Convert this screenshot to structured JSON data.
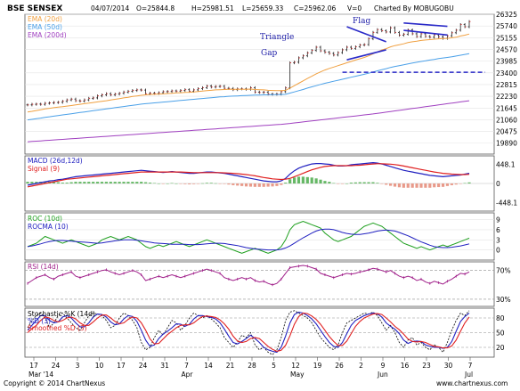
{
  "header": {
    "symbol": "BSE SENSEX",
    "date": "04/07/2014",
    "open": "O=25844.8",
    "high": "H=25981.51",
    "low": "L=25659.33",
    "close": "C=25962.06",
    "volume": "V=0",
    "charted_by": "Charted By MOBUGOBU"
  },
  "footer": {
    "copyright": "Copyright © 2014 ChartNexus",
    "url": "www.chartnexus.com"
  },
  "chart_data": [
    {
      "type": "line",
      "panel": "price",
      "legend": [
        "EMA (20d)",
        "EMA (50d)",
        "EMA (200d)"
      ],
      "legend_colors": [
        "#f0a040",
        "#4aa0e8",
        "#a040c0"
      ],
      "annotations": [
        "Flag",
        "Triangle",
        "Gap"
      ],
      "ylim": [
        19345,
        26325
      ],
      "yticks": [
        26325,
        25740,
        25155,
        24570,
        23985,
        23400,
        22815,
        22230,
        21645,
        21060,
        20475,
        19890
      ],
      "x_tick_labels": [
        "17",
        "24",
        "3",
        "10",
        "17",
        "24",
        "31",
        "7",
        "14",
        "21",
        "28",
        "5",
        "12",
        "19",
        "26",
        "2",
        "9",
        "16",
        "23",
        "30",
        "7"
      ],
      "month_labels": [
        "Mar '14",
        "Apr",
        "May",
        "Jun",
        "Jul"
      ],
      "ohlc_close": [
        21800,
        21830,
        21840,
        21830,
        21880,
        21900,
        21920,
        21930,
        21980,
        22050,
        22090,
        22010,
        21990,
        22050,
        22130,
        22150,
        22250,
        22300,
        22360,
        22300,
        22340,
        22380,
        22440,
        22480,
        22520,
        22550,
        22540,
        22360,
        22380,
        22370,
        22410,
        22460,
        22470,
        22500,
        22490,
        22520,
        22560,
        22480,
        22550,
        22610,
        22660,
        22740,
        22690,
        22720,
        22730,
        22630,
        22620,
        22560,
        22600,
        22600,
        22580,
        22660,
        22440,
        22420,
        22430,
        22340,
        22330,
        22340,
        22460,
        22650,
        23900,
        23930,
        24150,
        24250,
        24400,
        24520,
        24680,
        24500,
        24430,
        24370,
        24290,
        24410,
        24550,
        24680,
        24620,
        24700,
        24790,
        24810,
        25100,
        25420,
        25560,
        25500,
        25440,
        25650,
        25420,
        25280,
        25330,
        25540,
        25350,
        25210,
        25350,
        25220,
        25180,
        25300,
        25200,
        25120,
        25250,
        25400,
        25530,
        25810,
        25700,
        25960
      ],
      "ema20": [
        21450,
        21480,
        21520,
        21560,
        21600,
        21630,
        21660,
        21690,
        21710,
        21740,
        21770,
        21800,
        21830,
        21860,
        21890,
        21920,
        21950,
        21980,
        22010,
        22050,
        22080,
        22110,
        22150,
        22180,
        22220,
        22250,
        22280,
        22300,
        22320,
        22330,
        22340,
        22350,
        22370,
        22380,
        22400,
        22410,
        22420,
        22430,
        22450,
        22470,
        22490,
        22510,
        22530,
        22550,
        22560,
        22570,
        22580,
        22580,
        22580,
        22580,
        22580,
        22590,
        22570,
        22560,
        22550,
        22530,
        22520,
        22510,
        22510,
        22530,
        22640,
        22760,
        22880,
        23000,
        23120,
        23230,
        23350,
        23450,
        23540,
        23620,
        23690,
        23760,
        23830,
        23900,
        23970,
        24040,
        24100,
        24170,
        24250,
        24350,
        24450,
        24540,
        24610,
        24700,
        24760,
        24800,
        24850,
        24910,
        24950,
        24980,
        25020,
        25040,
        25060,
        25080,
        25100,
        25110,
        25120,
        25150,
        25180,
        25240,
        25280,
        25340
      ],
      "ema50": [
        21050,
        21080,
        21110,
        21140,
        21180,
        21210,
        21240,
        21270,
        21300,
        21330,
        21360,
        21390,
        21420,
        21450,
        21480,
        21510,
        21540,
        21570,
        21600,
        21630,
        21660,
        21690,
        21720,
        21750,
        21780,
        21810,
        21840,
        21860,
        21880,
        21900,
        21920,
        21940,
        21960,
        21980,
        22000,
        22020,
        22040,
        22060,
        22080,
        22100,
        22120,
        22140,
        22160,
        22180,
        22200,
        22210,
        22230,
        22240,
        22250,
        22260,
        22270,
        22280,
        22290,
        22290,
        22300,
        22300,
        22310,
        22310,
        22320,
        22330,
        22390,
        22450,
        22510,
        22570,
        22640,
        22700,
        22760,
        22820,
        22880,
        22930,
        22980,
        23030,
        23080,
        23130,
        23180,
        23230,
        23280,
        23330,
        23380,
        23440,
        23500,
        23560,
        23610,
        23670,
        23720,
        23760,
        23800,
        23850,
        23890,
        23930,
        23970,
        24000,
        24040,
        24070,
        24110,
        24140,
        24170,
        24200,
        24240,
        24280,
        24320,
        24360
      ],
      "ema200": [
        19960,
        19975,
        19990,
        20005,
        20020,
        20035,
        20050,
        20065,
        20080,
        20095,
        20110,
        20125,
        20140,
        20155,
        20170,
        20185,
        20200,
        20215,
        20230,
        20245,
        20260,
        20275,
        20290,
        20305,
        20320,
        20335,
        20350,
        20365,
        20380,
        20395,
        20410,
        20425,
        20440,
        20455,
        20470,
        20485,
        20500,
        20515,
        20530,
        20545,
        20560,
        20575,
        20590,
        20605,
        20620,
        20635,
        20650,
        20665,
        20680,
        20695,
        20710,
        20725,
        20740,
        20755,
        20770,
        20785,
        20800,
        20815,
        20830,
        20850,
        20875,
        20900,
        20925,
        20950,
        20975,
        21000,
        21025,
        21050,
        21075,
        21100,
        21125,
        21150,
        21175,
        21200,
        21225,
        21250,
        21275,
        21300,
        21325,
        21350,
        21380,
        21410,
        21440,
        21470,
        21500,
        21530,
        21560,
        21590,
        21620,
        21650,
        21680,
        21710,
        21740,
        21770,
        21800,
        21830,
        21860,
        21890,
        21920,
        21950,
        21980,
        22010
      ]
    },
    {
      "type": "line",
      "panel": "macd",
      "legend": [
        "MACD (26d,12d)",
        "Signal (9)"
      ],
      "legend_colors": [
        "#2020c0",
        "#e02020"
      ],
      "ylim": [
        -650,
        650
      ],
      "yticks": [
        "448.1",
        "0",
        "-448.1"
      ],
      "macd": [
        -40,
        -20,
        0,
        20,
        40,
        60,
        70,
        90,
        100,
        120,
        140,
        160,
        170,
        180,
        190,
        200,
        210,
        220,
        230,
        240,
        250,
        260,
        270,
        280,
        290,
        300,
        310,
        300,
        290,
        280,
        270,
        260,
        270,
        280,
        270,
        260,
        250,
        240,
        240,
        250,
        260,
        270,
        270,
        260,
        250,
        240,
        220,
        200,
        180,
        160,
        140,
        120,
        100,
        80,
        60,
        50,
        40,
        40,
        60,
        120,
        220,
        300,
        360,
        400,
        430,
        460,
        470,
        470,
        460,
        450,
        430,
        410,
        410,
        420,
        440,
        450,
        460,
        470,
        480,
        490,
        480,
        460,
        430,
        400,
        370,
        340,
        310,
        290,
        270,
        250,
        230,
        210,
        190,
        180,
        170,
        160,
        170,
        180,
        190,
        200,
        220,
        240
      ],
      "signal": [
        -80,
        -60,
        -40,
        -20,
        0,
        20,
        40,
        60,
        80,
        100,
        110,
        120,
        130,
        140,
        150,
        160,
        170,
        180,
        190,
        200,
        210,
        220,
        230,
        240,
        250,
        260,
        270,
        270,
        270,
        270,
        270,
        270,
        270,
        270,
        270,
        270,
        265,
        260,
        255,
        255,
        255,
        255,
        255,
        255,
        255,
        250,
        245,
        240,
        230,
        220,
        210,
        195,
        180,
        160,
        140,
        125,
        110,
        100,
        95,
        100,
        120,
        160,
        200,
        240,
        280,
        320,
        350,
        380,
        400,
        410,
        420,
        420,
        420,
        420,
        420,
        425,
        430,
        440,
        450,
        460,
        465,
        465,
        460,
        455,
        445,
        430,
        410,
        390,
        370,
        350,
        330,
        310,
        290,
        270,
        255,
        240,
        230,
        220,
        215,
        210,
        210,
        215
      ]
    },
    {
      "type": "line",
      "panel": "roc",
      "legend": [
        "ROC (10d)",
        "ROCMA (10)"
      ],
      "legend_colors": [
        "#20a020",
        "#2020c0"
      ],
      "ylim": [
        -3,
        11
      ],
      "yticks": [
        "9",
        "6",
        "3",
        "0"
      ],
      "roc": [
        1,
        1.5,
        2,
        3,
        4,
        3.5,
        3,
        2.5,
        2,
        2.5,
        3,
        2.5,
        2,
        1.5,
        1,
        1.5,
        2,
        3,
        3.5,
        4,
        3.5,
        3,
        3.5,
        4,
        3.5,
        3,
        2,
        1,
        0.5,
        1,
        1.5,
        1,
        1.5,
        2,
        2.5,
        2,
        1.5,
        1,
        1.5,
        2,
        2.5,
        3,
        2.5,
        2,
        1.5,
        1,
        0.5,
        0,
        -0.5,
        -1,
        -0.5,
        0,
        0.5,
        0,
        -0.5,
        -1,
        -0.5,
        0,
        1,
        3,
        6,
        7.5,
        8,
        8.5,
        8,
        7.5,
        7,
        6.5,
        5,
        4,
        3,
        2.5,
        3,
        3.5,
        4,
        5,
        6,
        7,
        7.5,
        8,
        7.5,
        7,
        6,
        5,
        4,
        3,
        2,
        1.5,
        1,
        0.5,
        1,
        0.5,
        0,
        0.5,
        1,
        1.5,
        1,
        1.5,
        2,
        2.5,
        3,
        3.5
      ],
      "rocma": [
        1,
        1.2,
        1.5,
        1.8,
        2.2,
        2.5,
        2.7,
        2.8,
        2.8,
        2.7,
        2.6,
        2.5,
        2.4,
        2.3,
        2.2,
        2.1,
        2,
        2.1,
        2.3,
        2.5,
        2.7,
        2.9,
        3,
        3,
        3,
        2.9,
        2.7,
        2.5,
        2.3,
        2.1,
        2,
        1.9,
        1.8,
        1.7,
        1.7,
        1.7,
        1.7,
        1.6,
        1.6,
        1.6,
        1.7,
        1.8,
        1.9,
        2,
        2,
        1.9,
        1.7,
        1.5,
        1.3,
        1,
        0.7,
        0.5,
        0.3,
        0.2,
        0.1,
        0,
        0,
        0,
        0.2,
        0.6,
        1.2,
        2,
        2.8,
        3.6,
        4.3,
        5,
        5.6,
        6,
        6.2,
        6.2,
        6,
        5.6,
        5.2,
        4.9,
        4.7,
        4.6,
        4.6,
        4.8,
        5,
        5.3,
        5.6,
        5.8,
        5.9,
        5.8,
        5.6,
        5.2,
        4.7,
        4.2,
        3.6,
        3,
        2.4,
        1.9,
        1.4,
        1,
        0.8,
        0.7,
        0.7,
        0.8,
        1,
        1.2,
        1.5,
        1.8
      ]
    },
    {
      "type": "line",
      "panel": "rsi",
      "legend": [
        "RSI (14d)"
      ],
      "legend_colors": [
        "#a0208a"
      ],
      "ylim": [
        20,
        82
      ],
      "yticks": [
        "70%",
        "30%"
      ],
      "rsi": [
        52,
        56,
        60,
        62,
        64,
        60,
        58,
        62,
        64,
        66,
        68,
        62,
        60,
        62,
        64,
        66,
        68,
        70,
        71,
        68,
        66,
        64,
        66,
        68,
        70,
        68,
        64,
        56,
        58,
        60,
        62,
        60,
        62,
        64,
        62,
        60,
        62,
        64,
        66,
        68,
        70,
        72,
        70,
        68,
        66,
        60,
        58,
        56,
        58,
        60,
        58,
        60,
        56,
        54,
        55,
        52,
        50,
        52,
        58,
        66,
        74,
        75,
        76,
        77,
        76,
        74,
        72,
        66,
        64,
        62,
        60,
        62,
        64,
        66,
        65,
        66,
        68,
        69,
        71,
        73,
        72,
        70,
        68,
        70,
        66,
        62,
        60,
        62,
        60,
        56,
        58,
        54,
        52,
        55,
        53,
        51,
        55,
        58,
        62,
        66,
        65,
        68
      ]
    },
    {
      "type": "line",
      "panel": "stochastic",
      "legend": [
        "Stochastic %K (14d)",
        "%D (3)",
        "Smoothed %D (3)"
      ],
      "legend_colors": [
        "#000000",
        "#2020c0",
        "#e02020"
      ],
      "ylim": [
        0,
        100
      ],
      "yticks": [
        "80",
        "50",
        "20"
      ],
      "k": [
        60,
        75,
        85,
        90,
        80,
        60,
        70,
        85,
        90,
        80,
        70,
        60,
        55,
        70,
        85,
        90,
        88,
        85,
        75,
        60,
        65,
        80,
        90,
        85,
        75,
        60,
        30,
        15,
        20,
        40,
        55,
        45,
        60,
        75,
        70,
        55,
        65,
        80,
        90,
        85,
        80,
        85,
        78,
        70,
        60,
        40,
        30,
        20,
        30,
        45,
        40,
        50,
        25,
        15,
        20,
        10,
        5,
        15,
        40,
        75,
        92,
        95,
        90,
        85,
        80,
        70,
        55,
        40,
        30,
        20,
        15,
        25,
        50,
        70,
        75,
        80,
        85,
        90,
        88,
        92,
        85,
        70,
        55,
        65,
        50,
        30,
        20,
        35,
        40,
        25,
        30,
        20,
        15,
        25,
        20,
        10,
        30,
        55,
        75,
        90,
        85,
        95
      ],
      "d": [
        55,
        65,
        75,
        85,
        85,
        75,
        70,
        72,
        82,
        85,
        80,
        70,
        62,
        62,
        70,
        82,
        88,
        87,
        82,
        72,
        66,
        68,
        78,
        85,
        83,
        73,
        55,
        35,
        22,
        25,
        38,
        47,
        53,
        60,
        68,
        67,
        63,
        67,
        78,
        85,
        85,
        83,
        81,
        78,
        70,
        57,
        43,
        30,
        27,
        32,
        38,
        45,
        38,
        30,
        20,
        15,
        12,
        10,
        20,
        43,
        70,
        87,
        92,
        90,
        85,
        78,
        68,
        55,
        42,
        30,
        22,
        20,
        30,
        48,
        65,
        75,
        80,
        85,
        88,
        90,
        88,
        82,
        70,
        63,
        57,
        48,
        35,
        28,
        32,
        33,
        32,
        25,
        22,
        20,
        20,
        18,
        20,
        32,
        53,
        73,
        83,
        90
      ],
      "sd": [
        50,
        58,
        65,
        75,
        82,
        80,
        75,
        72,
        75,
        80,
        82,
        78,
        70,
        65,
        65,
        72,
        80,
        86,
        86,
        80,
        73,
        68,
        70,
        77,
        82,
        80,
        70,
        55,
        37,
        27,
        28,
        37,
        46,
        53,
        60,
        65,
        66,
        66,
        70,
        77,
        83,
        84,
        83,
        81,
        76,
        68,
        57,
        43,
        33,
        30,
        32,
        38,
        40,
        38,
        30,
        22,
        16,
        12,
        14,
        24,
        44,
        67,
        83,
        90,
        89,
        84,
        77,
        67,
        55,
        42,
        32,
        24,
        24,
        33,
        48,
        63,
        73,
        80,
        84,
        88,
        89,
        87,
        80,
        72,
        63,
        56,
        47,
        37,
        32,
        31,
        32,
        30,
        26,
        22,
        21,
        19,
        19,
        23,
        35,
        53,
        70,
        82
      ]
    }
  ]
}
